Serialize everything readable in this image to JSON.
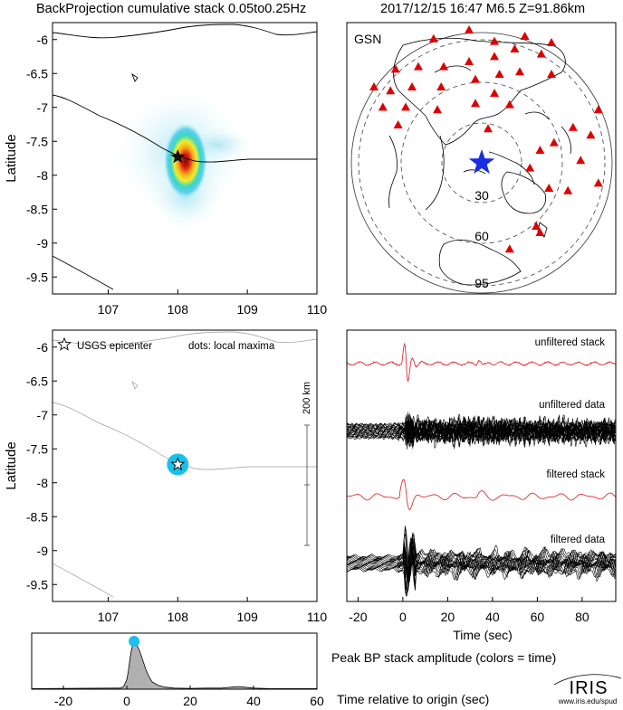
{
  "header": {
    "title": "BackProjection cumulative stack 0.05to0.25Hz",
    "event": "2017/12/15 16:47  M6.5  Z=91.86km"
  },
  "colors": {
    "frame": "#000000",
    "station": "#dd0000",
    "epicenter_star": "#1a2ee0",
    "maxima_dot": "#1cc0ea",
    "stack_trace": "#e03030",
    "data_trace": "#000000",
    "peak_fill": "#b0b0b0",
    "coast": "#000000"
  },
  "chart_data": [
    {
      "type": "heatmap",
      "panel": "backprojection-map",
      "ylabel": "Latitude",
      "xlim": [
        106.2,
        110.0
      ],
      "ylim": [
        -9.75,
        -5.75
      ],
      "xticks": [
        107,
        108,
        109,
        110
      ],
      "yticks": [
        -6,
        -6.5,
        -7,
        -7.5,
        -8,
        -8.5,
        -9,
        -9.5
      ],
      "epicenter": {
        "lon": 108.0,
        "lat": -7.73
      },
      "peak": {
        "lon": 108.0,
        "lat": -7.78
      }
    },
    {
      "type": "scatter",
      "panel": "gsn-station-map",
      "label": "GSN",
      "rings": [
        "30",
        "60",
        "95"
      ],
      "epicenter": {
        "dx": 0.0,
        "dy": 0.0
      },
      "stations": [
        [
          -0.38,
          0.98
        ],
        [
          -0.1,
          1.05
        ],
        [
          0.1,
          0.96
        ],
        [
          0.34,
          1.0
        ],
        [
          0.55,
          0.95
        ],
        [
          -0.68,
          0.74
        ],
        [
          -0.5,
          0.76
        ],
        [
          -0.3,
          0.76
        ],
        [
          -0.1,
          0.8
        ],
        [
          0.1,
          0.84
        ],
        [
          0.26,
          0.9
        ],
        [
          0.47,
          0.86
        ],
        [
          -0.85,
          0.6
        ],
        [
          -0.72,
          0.57
        ],
        [
          -0.55,
          0.6
        ],
        [
          -0.32,
          0.6
        ],
        [
          -0.05,
          0.66
        ],
        [
          0.14,
          0.7
        ],
        [
          0.3,
          0.72
        ],
        [
          0.55,
          0.7
        ],
        [
          -0.78,
          0.44
        ],
        [
          -0.6,
          0.44
        ],
        [
          -0.35,
          0.42
        ],
        [
          -0.05,
          0.47
        ],
        [
          0.1,
          0.55
        ],
        [
          0.22,
          0.46
        ],
        [
          -0.66,
          0.3
        ],
        [
          0.05,
          0.27
        ],
        [
          0.92,
          0.42
        ],
        [
          0.72,
          0.28
        ],
        [
          0.86,
          0.22
        ],
        [
          0.57,
          0.16
        ],
        [
          0.46,
          0.1
        ],
        [
          0.78,
          0.02
        ],
        [
          0.38,
          -0.04
        ],
        [
          0.92,
          -0.16
        ],
        [
          0.53,
          -0.2
        ],
        [
          0.68,
          -0.22
        ],
        [
          0.46,
          -0.55
        ],
        [
          0.43,
          -0.5
        ],
        [
          0.22,
          -0.68
        ]
      ]
    },
    {
      "type": "scatter",
      "panel": "local-maxima-map",
      "ylabel": "Latitude",
      "legend_star": "USGS epicenter",
      "legend_dots": "dots: local maxima",
      "scale_label": "200 km",
      "xlim": [
        106.2,
        110.0
      ],
      "ylim": [
        -9.75,
        -5.75
      ],
      "xticks": [
        107,
        108,
        109,
        110
      ],
      "yticks": [
        -6,
        -6.5,
        -7,
        -7.5,
        -8,
        -8.5,
        -9,
        -9.5
      ],
      "epicenter": {
        "lon": 108.0,
        "lat": -7.73
      },
      "maxima": [
        {
          "lon": 108.0,
          "lat": -7.73
        }
      ]
    },
    {
      "type": "line",
      "panel": "waveforms",
      "xlabel": "Time (sec)",
      "xlim": [
        -25,
        95
      ],
      "xticks": [
        -20,
        0,
        20,
        40,
        60,
        80
      ],
      "traces": [
        {
          "label": "unfiltered stack"
        },
        {
          "label": "unfiltered data"
        },
        {
          "label": "filtered stack"
        },
        {
          "label": "filtered data"
        }
      ]
    },
    {
      "type": "area",
      "panel": "peak-amplitude",
      "title": "Peak BP stack amplitude (colors = time)",
      "xlabel": "Time relative to origin (sec)",
      "xlim": [
        -30,
        60
      ],
      "xticks": [
        -20,
        0,
        20,
        40,
        60
      ],
      "ylim": [
        0,
        1.0
      ],
      "x": [
        -30,
        -2,
        -1,
        0,
        0.5,
        1,
        1.5,
        2,
        2.5,
        3,
        4,
        5,
        6,
        7,
        8,
        10,
        12,
        15,
        20,
        25,
        30,
        33,
        35,
        37,
        40,
        45,
        50,
        55,
        60
      ],
      "y": [
        0.01,
        0.02,
        0.05,
        0.18,
        0.35,
        0.58,
        0.76,
        0.86,
        0.88,
        0.86,
        0.74,
        0.56,
        0.38,
        0.24,
        0.14,
        0.07,
        0.04,
        0.02,
        0.015,
        0.02,
        0.02,
        0.04,
        0.05,
        0.04,
        0.02,
        0.01,
        0.01,
        0.01,
        0.01
      ],
      "peak_time": 2.3
    }
  ],
  "logo": {
    "name": "IRIS",
    "url_text": "www.iris.edu/spud"
  }
}
